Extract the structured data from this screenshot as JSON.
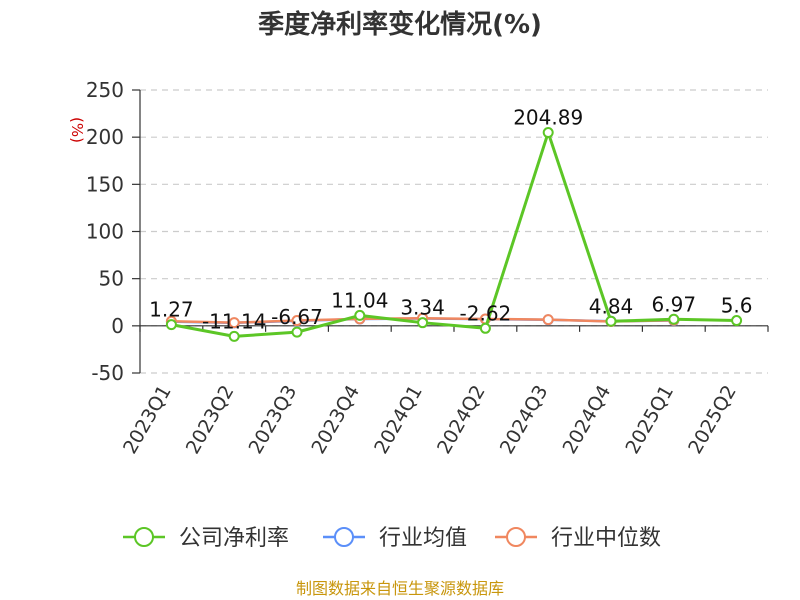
{
  "chart_data": {
    "type": "line",
    "title": "季度净利率变化情况(%)",
    "ylabel": "(%)",
    "categories": [
      "2023Q1",
      "2023Q2",
      "2023Q3",
      "2023Q4",
      "2024Q1",
      "2024Q2",
      "2024Q3",
      "2024Q4",
      "2025Q1",
      "2025Q2"
    ],
    "series": [
      {
        "name": "公司净利率",
        "color": "#5cc626",
        "values": [
          1.27,
          -11.14,
          -6.67,
          11.04,
          3.34,
          -2.62,
          204.89,
          4.84,
          6.97,
          5.6
        ],
        "labels": [
          "1.27",
          "-11.14",
          "-6.67",
          "11.04",
          "3.34",
          "-2.62",
          "204.89",
          "4.84",
          "6.97",
          "5.6"
        ]
      },
      {
        "name": "行业均值",
        "color": "#5b8ff9",
        "values": [
          4.5,
          3.2,
          5.3,
          7.2,
          7.8,
          7.1,
          6.4,
          4.8,
          5.6,
          null
        ]
      },
      {
        "name": "行业中位数",
        "color": "#f0875f",
        "values": [
          4.8,
          3.4,
          5.6,
          7.4,
          8.0,
          7.3,
          6.6,
          4.6,
          5.9,
          null
        ]
      }
    ],
    "y_ticks": [
      250,
      200,
      150,
      100,
      50,
      0,
      -50
    ],
    "ylim": [
      -50,
      250
    ],
    "grid": true,
    "legend_position": "bottom"
  },
  "source": "制图数据来自恒生聚源数据库"
}
